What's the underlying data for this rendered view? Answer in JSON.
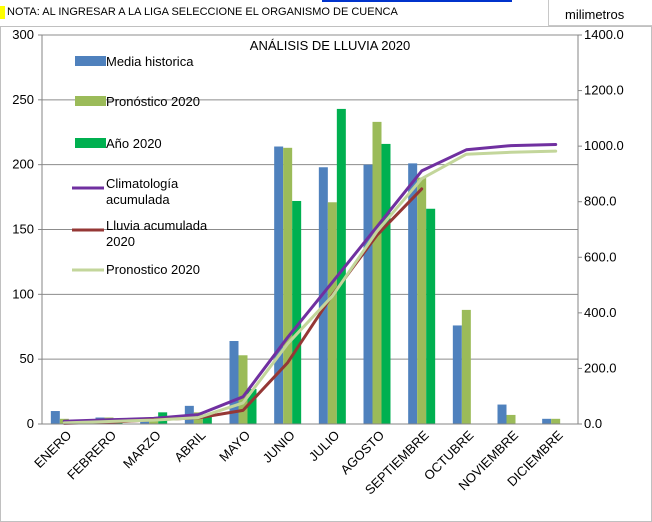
{
  "note": "NOTA: AL INGRESAR A LA LIGA SELECCIONE EL ORGANISMO DE CUENCA",
  "units_label": "milimetros",
  "chart_data": {
    "type": "bar",
    "title": "ANÁLISIS DE LLUVIA 2020",
    "categories": [
      "ENERO",
      "FEBRERO",
      "MARZO",
      "ABRIL",
      "MAYO",
      "JUNIO",
      "JULIO",
      "AGOSTO",
      "SEPTIEMBRE",
      "OCTUBRE",
      "NOVIEMBRE",
      "DICIEMBRE"
    ],
    "y_left": {
      "min": 0,
      "max": 300,
      "ticks": [
        "0",
        "50",
        "100",
        "150",
        "200",
        "250",
        "300"
      ]
    },
    "y_right": {
      "min": 0,
      "max": 1400,
      "ticks": [
        "0.0",
        "200.0",
        "400.0",
        "600.0",
        "800.0",
        "1000.0",
        "1200.0",
        "1400.0"
      ]
    },
    "gridlines": true,
    "series": [
      {
        "name": "Media historica",
        "kind": "bar",
        "axis": "left",
        "color": "#4f81bd",
        "values": [
          10,
          5,
          5,
          14,
          64,
          214,
          198,
          200,
          201,
          76,
          15,
          4
        ]
      },
      {
        "name": "Pronóstico 2020",
        "kind": "bar",
        "axis": "left",
        "color": "#9bbb59",
        "values": [
          4,
          5,
          5,
          9,
          53,
          213,
          171,
          233,
          190,
          88,
          7,
          4
        ]
      },
      {
        "name": "Año 2020",
        "kind": "bar",
        "axis": "left",
        "color": "#00b050",
        "values": [
          2,
          4,
          9,
          7,
          27,
          172,
          243,
          216,
          166,
          null,
          null,
          null
        ]
      },
      {
        "name": "Climatología acumulada",
        "kind": "line",
        "axis": "right",
        "color": "#7030a0",
        "values": [
          10,
          15,
          20,
          34,
          98,
          312,
          510,
          710,
          911,
          987,
          1002,
          1006
        ]
      },
      {
        "name": "Lluvia acumulada 2020",
        "kind": "line",
        "axis": "right",
        "color": "#953735",
        "values": [
          2,
          6,
          15,
          22,
          49,
          221,
          464,
          680,
          846,
          null,
          null,
          null
        ]
      },
      {
        "name": "Pronostico 2020",
        "kind": "line",
        "axis": "right",
        "color": "#c3d69b",
        "values": [
          4,
          9,
          14,
          23,
          76,
          289,
          460,
          693,
          883,
          971,
          978,
          982
        ]
      }
    ],
    "legend": [
      {
        "label": "Media historica",
        "style": "box",
        "color": "#4f81bd"
      },
      {
        "label": "Pronóstico 2020",
        "style": "box",
        "color": "#9bbb59"
      },
      {
        "label": "Año 2020",
        "style": "box",
        "color": "#00b050"
      },
      {
        "label": "Climatología\nacumulada",
        "style": "line",
        "color": "#7030a0"
      },
      {
        "label": "Lluvia acumulada\n2020",
        "style": "line",
        "color": "#953735"
      },
      {
        "label": "Pronostico 2020",
        "style": "line",
        "color": "#c3d69b"
      }
    ]
  }
}
